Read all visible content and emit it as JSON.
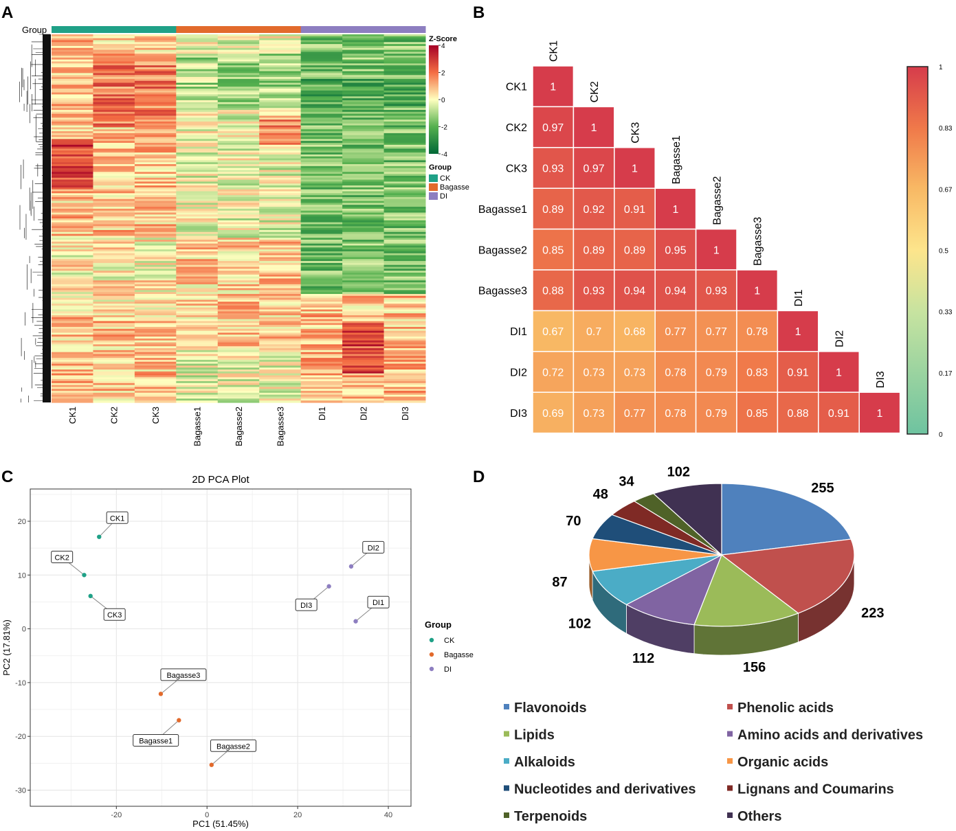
{
  "panels": {
    "A": {
      "letter": "A"
    },
    "B": {
      "letter": "B"
    },
    "C": {
      "letter": "C"
    },
    "D": {
      "letter": "D"
    }
  },
  "chart_data": [
    {
      "id": "A",
      "type": "heatmap",
      "title": "",
      "group_bar_label": "Group",
      "columns": [
        "CK1",
        "CK2",
        "CK3",
        "Bagasse1",
        "Bagasse2",
        "Bagasse3",
        "DI1",
        "DI2",
        "DI3"
      ],
      "column_groups": [
        "CK",
        "CK",
        "CK",
        "Bagasse",
        "Bagasse",
        "Bagasse",
        "DI",
        "DI",
        "DI"
      ],
      "colorbar": {
        "title": "Z-Score",
        "ticks": [
          4,
          2,
          0,
          -2,
          -4
        ],
        "range": [
          -4,
          4
        ]
      },
      "legend": {
        "title": "Group",
        "items": [
          {
            "name": "CK",
            "color": "#1fa187"
          },
          {
            "name": "Bagasse",
            "color": "#e26a2c"
          },
          {
            "name": "DI",
            "color": "#8d7ec0"
          }
        ]
      }
    },
    {
      "id": "B",
      "type": "heatmap",
      "title": "",
      "labels": [
        "CK1",
        "CK2",
        "CK3",
        "Bagasse1",
        "Bagasse2",
        "Bagasse3",
        "DI1",
        "DI2",
        "DI3"
      ],
      "matrix": [
        [
          1
        ],
        [
          0.97,
          1
        ],
        [
          0.93,
          0.97,
          1
        ],
        [
          0.89,
          0.92,
          0.91,
          1
        ],
        [
          0.85,
          0.89,
          0.89,
          0.95,
          1
        ],
        [
          0.88,
          0.93,
          0.94,
          0.94,
          0.93,
          1
        ],
        [
          0.67,
          0.7,
          0.68,
          0.77,
          0.77,
          0.78,
          1
        ],
        [
          0.72,
          0.73,
          0.73,
          0.78,
          0.79,
          0.83,
          0.91,
          1
        ],
        [
          0.69,
          0.73,
          0.77,
          0.78,
          0.79,
          0.85,
          0.88,
          0.91,
          1
        ]
      ],
      "colorbar": {
        "range": [
          0,
          1
        ],
        "ticks": [
          "1",
          "0.83",
          "0.67",
          "0.5",
          "0.33",
          "0.17",
          "0"
        ]
      }
    },
    {
      "id": "C",
      "type": "scatter",
      "title": "2D PCA Plot",
      "xlabel": "PC1 (51.45%)",
      "ylabel": "PC2 (17.81%)",
      "xlim": [
        -39,
        45
      ],
      "ylim": [
        -33,
        26
      ],
      "xticks": [
        -20,
        0,
        20,
        40
      ],
      "yticks": [
        20,
        10,
        0,
        -10,
        -20,
        -30
      ],
      "grid": true,
      "legend_title": "Group",
      "series": [
        {
          "name": "CK",
          "color": "#1fa187",
          "points": [
            {
              "label": "CK1",
              "x": -23.8,
              "y": 17.1,
              "lx": -19.8,
              "ly": 20.6
            },
            {
              "label": "CK2",
              "x": -27.1,
              "y": 10.0,
              "lx": -32.0,
              "ly": 13.3
            },
            {
              "label": "CK3",
              "x": -25.7,
              "y": 6.1,
              "lx": -20.4,
              "ly": 2.6
            }
          ]
        },
        {
          "name": "Bagasse",
          "color": "#e26a2c",
          "points": [
            {
              "label": "Bagasse1",
              "x": -6.2,
              "y": -17.0,
              "lx": -11.3,
              "ly": -20.8
            },
            {
              "label": "Bagasse2",
              "x": 1.0,
              "y": -25.3,
              "lx": 5.8,
              "ly": -21.8
            },
            {
              "label": "Bagasse3",
              "x": -10.2,
              "y": -12.1,
              "lx": -5.2,
              "ly": -8.6
            }
          ]
        },
        {
          "name": "DI",
          "color": "#8d7ec0",
          "points": [
            {
              "label": "DI1",
              "x": 32.8,
              "y": 1.4,
              "lx": 37.8,
              "ly": 4.9
            },
            {
              "label": "DI2",
              "x": 31.8,
              "y": 11.6,
              "lx": 36.7,
              "ly": 15.1
            },
            {
              "label": "DI3",
              "x": 26.9,
              "y": 7.9,
              "lx": 21.9,
              "ly": 4.4
            }
          ]
        }
      ]
    },
    {
      "id": "D",
      "type": "pie",
      "title": "",
      "slices": [
        {
          "name": "Flavonoids",
          "value": 255,
          "color": "#4f81bd"
        },
        {
          "name": "Phenolic acids",
          "value": 223,
          "color": "#c0504d"
        },
        {
          "name": "Lipids",
          "value": 156,
          "color": "#9bbb59"
        },
        {
          "name": "Amino acids and derivatives",
          "value": 112,
          "color": "#8064a2"
        },
        {
          "name": "Alkaloids",
          "value": 102,
          "color": "#4bacc6"
        },
        {
          "name": "Organic acids",
          "value": 87,
          "color": "#f79646"
        },
        {
          "name": "Nucleotides and derivatives",
          "value": 70,
          "color": "#1f4e79"
        },
        {
          "name": "Lignans and Coumarins",
          "value": 48,
          "color": "#7f2a25"
        },
        {
          "name": "Terpenoids",
          "value": 34,
          "color": "#4f6228"
        },
        {
          "name": "Others",
          "value": 102,
          "color": "#403152"
        }
      ]
    }
  ]
}
